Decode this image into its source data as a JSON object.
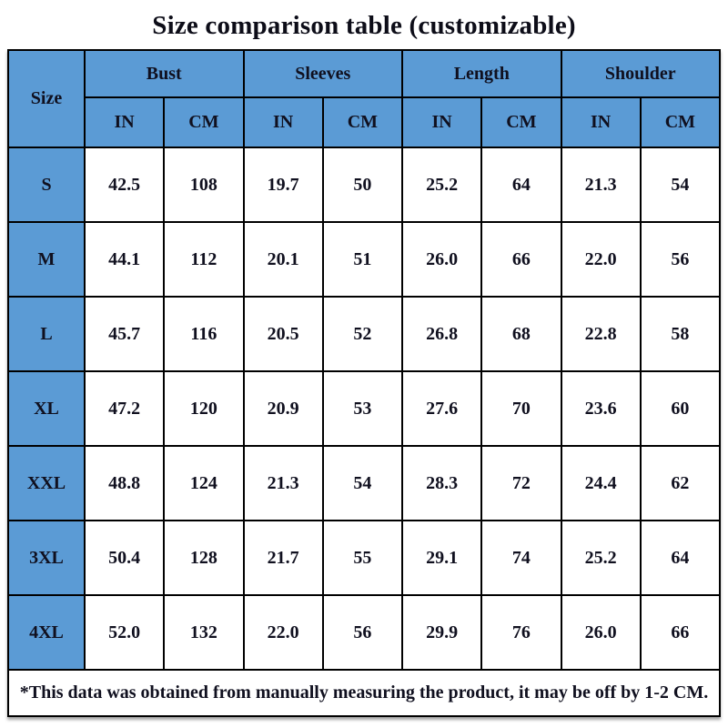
{
  "title": "Size comparison table (customizable)",
  "colors": {
    "header_blue": "#5B9BD5",
    "border": "#000000",
    "text": "#10101f",
    "cell_background": "#ffffff"
  },
  "table": {
    "size_header": "Size",
    "groups": [
      {
        "label": "Bust"
      },
      {
        "label": "Sleeves"
      },
      {
        "label": "Length"
      },
      {
        "label": "Shoulder"
      }
    ],
    "unit_headers": [
      "IN",
      "CM",
      "IN",
      "CM",
      "IN",
      "CM",
      "IN",
      "CM"
    ],
    "rows": [
      {
        "size": "S",
        "values": [
          "42.5",
          "108",
          "19.7",
          "50",
          "25.2",
          "64",
          "21.3",
          "54"
        ]
      },
      {
        "size": "M",
        "values": [
          "44.1",
          "112",
          "20.1",
          "51",
          "26.0",
          "66",
          "22.0",
          "56"
        ]
      },
      {
        "size": "L",
        "values": [
          "45.7",
          "116",
          "20.5",
          "52",
          "26.8",
          "68",
          "22.8",
          "58"
        ]
      },
      {
        "size": "XL",
        "values": [
          "47.2",
          "120",
          "20.9",
          "53",
          "27.6",
          "70",
          "23.6",
          "60"
        ]
      },
      {
        "size": "XXL",
        "values": [
          "48.8",
          "124",
          "21.3",
          "54",
          "28.3",
          "72",
          "24.4",
          "62"
        ]
      },
      {
        "size": "3XL",
        "values": [
          "50.4",
          "128",
          "21.7",
          "55",
          "29.1",
          "74",
          "25.2",
          "64"
        ]
      },
      {
        "size": "4XL",
        "values": [
          "52.0",
          "132",
          "22.0",
          "56",
          "29.9",
          "76",
          "26.0",
          "66"
        ]
      }
    ],
    "footnote": "*This data was obtained from manually measuring the product, it may be off by 1-2 CM."
  },
  "chart_data": {
    "type": "table",
    "title": "Size comparison table (customizable)",
    "columns": [
      "Size",
      "Bust IN",
      "Bust CM",
      "Sleeves IN",
      "Sleeves CM",
      "Length IN",
      "Length CM",
      "Shoulder IN",
      "Shoulder CM"
    ],
    "rows": [
      [
        "S",
        42.5,
        108,
        19.7,
        50,
        25.2,
        64,
        21.3,
        54
      ],
      [
        "M",
        44.1,
        112,
        20.1,
        51,
        26.0,
        66,
        22.0,
        56
      ],
      [
        "L",
        45.7,
        116,
        20.5,
        52,
        26.8,
        68,
        22.8,
        58
      ],
      [
        "XL",
        47.2,
        120,
        20.9,
        53,
        27.6,
        70,
        23.6,
        60
      ],
      [
        "XXL",
        48.8,
        124,
        21.3,
        54,
        28.3,
        72,
        24.4,
        62
      ],
      [
        "3XL",
        50.4,
        128,
        21.7,
        55,
        29.1,
        74,
        25.2,
        64
      ],
      [
        "4XL",
        52.0,
        132,
        22.0,
        56,
        29.9,
        76,
        26.0,
        66
      ]
    ],
    "footnote": "*This data was obtained from manually measuring the product, it may be off by 1-2 CM."
  }
}
